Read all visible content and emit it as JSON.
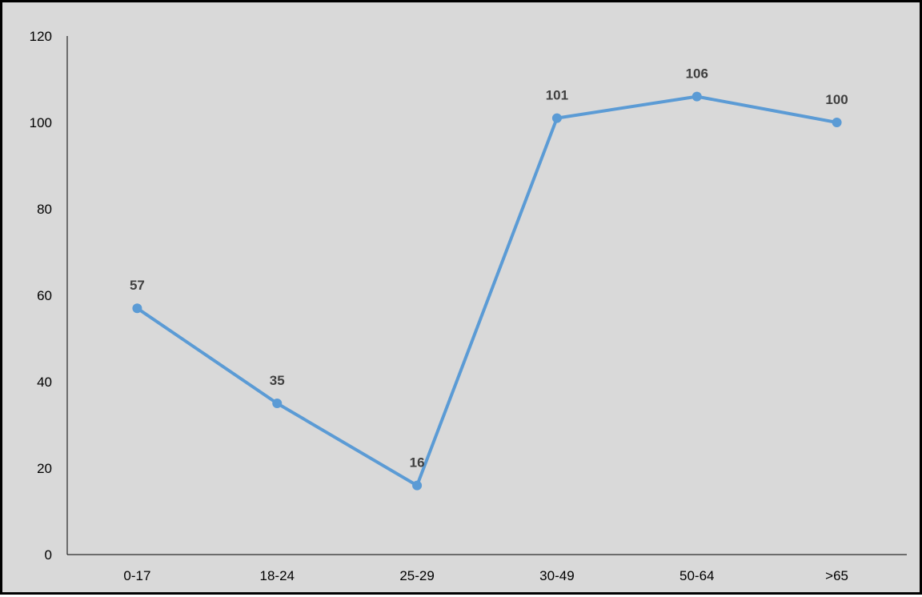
{
  "chart_data": {
    "type": "line",
    "title": "",
    "xlabel": "",
    "ylabel": "",
    "categories": [
      "0-17",
      "18-24",
      "25-29",
      "30-49",
      "50-64",
      ">65"
    ],
    "series": [
      {
        "values": [
          57,
          35,
          16,
          101,
          106,
          100
        ],
        "color": "#5b9bd5",
        "data_labels": [
          "57",
          "35",
          "16",
          "101",
          "106",
          "100"
        ]
      }
    ],
    "ylim": [
      0,
      120
    ],
    "yticks": [
      0,
      20,
      40,
      60,
      80,
      100,
      120
    ],
    "ytick_labels": [
      "0",
      "20",
      "40",
      "60",
      "80",
      "100",
      "120"
    ],
    "grid": false,
    "legend": "none",
    "background": "#d9d9d9",
    "border_color": "#000000"
  }
}
